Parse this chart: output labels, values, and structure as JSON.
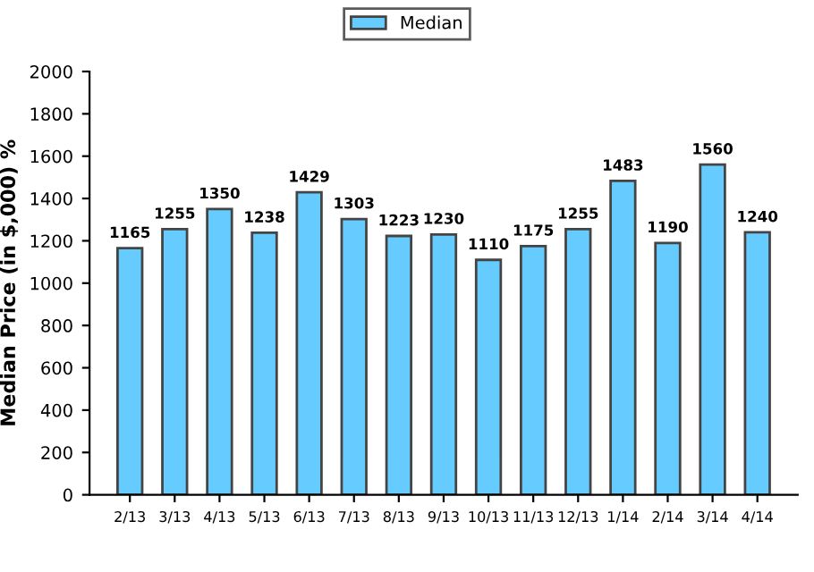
{
  "chart_data": {
    "type": "bar",
    "ylabel": "Median Price (in $,000) %",
    "categories": [
      "2/13",
      "3/13",
      "4/13",
      "5/13",
      "6/13",
      "7/13",
      "8/13",
      "9/13",
      "10/13",
      "11/13",
      "12/13",
      "1/14",
      "2/14",
      "3/14",
      "4/14"
    ],
    "series": [
      {
        "name": "Median",
        "color": "#66ccff",
        "values": [
          1165,
          1255,
          1350,
          1238,
          1429,
          1303,
          1223,
          1230,
          1110,
          1175,
          1255,
          1483,
          1190,
          1560,
          1240
        ]
      }
    ],
    "ylim": [
      0,
      2000
    ],
    "yticks": [
      0,
      200,
      400,
      600,
      800,
      1000,
      1200,
      1400,
      1600,
      1800,
      2000
    ],
    "data_labels": true,
    "legend": "top",
    "grid": false
  }
}
